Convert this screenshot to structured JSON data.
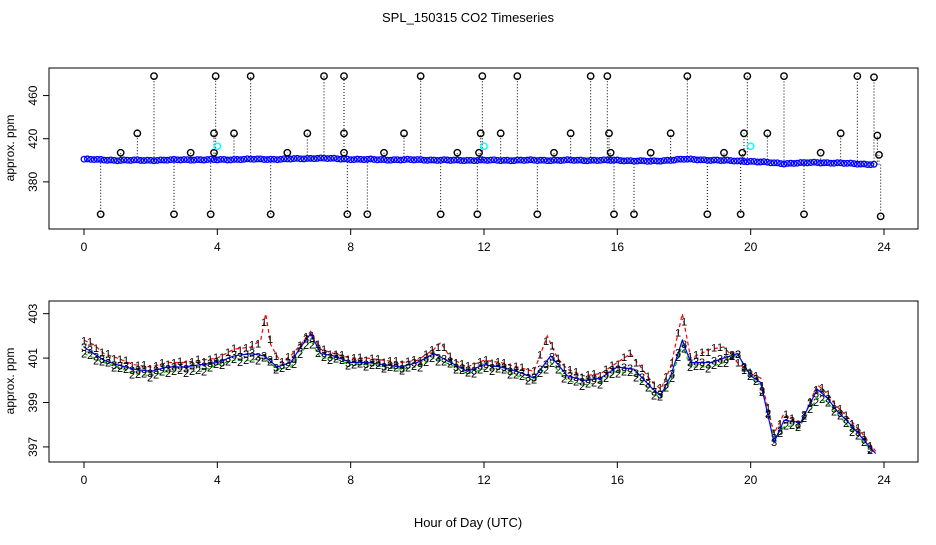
{
  "title": "SPL_150315  CO2 Timeseries",
  "xlabel": "Hour of Day (UTC)",
  "chart_data": [
    {
      "type": "scatter",
      "name": "top-panel",
      "ylabel": "approx. ppm",
      "xlim": [
        0,
        24
      ],
      "ylim": [
        340,
        480
      ],
      "x_ticks": [
        0,
        4,
        8,
        12,
        16,
        20,
        24
      ],
      "y_ticks": [
        380,
        420,
        460
      ],
      "colors": {
        "main": "#0000ff",
        "outlier": "#000000",
        "cyan": "#00ffff",
        "stem": "#000000"
      },
      "baseline": [
        [
          0,
          401
        ],
        [
          1,
          400
        ],
        [
          2,
          400
        ],
        [
          3,
          400.5
        ],
        [
          4,
          400.5
        ],
        [
          5,
          401
        ],
        [
          6,
          401
        ],
        [
          7,
          402
        ],
        [
          8,
          401
        ],
        [
          9,
          400.5
        ],
        [
          10,
          400.5
        ],
        [
          11,
          400
        ],
        [
          12,
          400
        ],
        [
          13,
          400
        ],
        [
          14,
          400
        ],
        [
          15,
          400
        ],
        [
          16,
          400
        ],
        [
          17,
          399
        ],
        [
          18,
          401
        ],
        [
          19,
          400
        ],
        [
          20,
          399
        ],
        [
          21,
          397
        ],
        [
          22,
          398
        ],
        [
          23,
          397
        ],
        [
          23.8,
          396
        ]
      ],
      "outliers": [
        {
          "x": 0.5,
          "y": 350
        },
        {
          "x": 1.1,
          "y": 407
        },
        {
          "x": 1.6,
          "y": 425
        },
        {
          "x": 2.1,
          "y": 478
        },
        {
          "x": 2.7,
          "y": 350
        },
        {
          "x": 3.2,
          "y": 407
        },
        {
          "x": 3.8,
          "y": 350
        },
        {
          "x": 3.9,
          "y": 425
        },
        {
          "x": 3.9,
          "y": 407
        },
        {
          "x": 3.95,
          "y": 478
        },
        {
          "x": 4.5,
          "y": 425
        },
        {
          "x": 5.0,
          "y": 478
        },
        {
          "x": 5.6,
          "y": 350
        },
        {
          "x": 6.1,
          "y": 407
        },
        {
          "x": 6.7,
          "y": 425
        },
        {
          "x": 7.2,
          "y": 478
        },
        {
          "x": 7.8,
          "y": 478
        },
        {
          "x": 7.8,
          "y": 425
        },
        {
          "x": 7.8,
          "y": 407
        },
        {
          "x": 7.9,
          "y": 350
        },
        {
          "x": 8.5,
          "y": 350
        },
        {
          "x": 9.0,
          "y": 407
        },
        {
          "x": 9.6,
          "y": 425
        },
        {
          "x": 10.1,
          "y": 478
        },
        {
          "x": 10.7,
          "y": 350
        },
        {
          "x": 11.2,
          "y": 407
        },
        {
          "x": 11.8,
          "y": 350
        },
        {
          "x": 11.85,
          "y": 407
        },
        {
          "x": 11.9,
          "y": 425
        },
        {
          "x": 11.95,
          "y": 478
        },
        {
          "x": 12.5,
          "y": 425
        },
        {
          "x": 13.0,
          "y": 478
        },
        {
          "x": 13.6,
          "y": 350
        },
        {
          "x": 14.1,
          "y": 407
        },
        {
          "x": 14.6,
          "y": 425
        },
        {
          "x": 15.2,
          "y": 478
        },
        {
          "x": 15.7,
          "y": 478
        },
        {
          "x": 15.75,
          "y": 425
        },
        {
          "x": 15.8,
          "y": 407
        },
        {
          "x": 15.9,
          "y": 350
        },
        {
          "x": 16.5,
          "y": 350
        },
        {
          "x": 17.0,
          "y": 407
        },
        {
          "x": 17.6,
          "y": 425
        },
        {
          "x": 18.1,
          "y": 478
        },
        {
          "x": 18.7,
          "y": 350
        },
        {
          "x": 19.2,
          "y": 407
        },
        {
          "x": 19.7,
          "y": 350
        },
        {
          "x": 19.75,
          "y": 407
        },
        {
          "x": 19.8,
          "y": 425
        },
        {
          "x": 19.9,
          "y": 478
        },
        {
          "x": 20.5,
          "y": 425
        },
        {
          "x": 21.0,
          "y": 478
        },
        {
          "x": 21.6,
          "y": 350
        },
        {
          "x": 22.1,
          "y": 407
        },
        {
          "x": 22.7,
          "y": 425
        },
        {
          "x": 23.2,
          "y": 478
        },
        {
          "x": 23.7,
          "y": 477
        },
        {
          "x": 23.8,
          "y": 423
        },
        {
          "x": 23.85,
          "y": 405
        },
        {
          "x": 23.9,
          "y": 348
        }
      ],
      "cyan_points": [
        {
          "x": 4.0,
          "y": 413
        },
        {
          "x": 12.0,
          "y": 413
        },
        {
          "x": 20.0,
          "y": 413
        }
      ]
    },
    {
      "type": "line",
      "name": "bottom-panel",
      "ylabel": "approx. ppm",
      "xlim": [
        0,
        24
      ],
      "ylim": [
        396.5,
        403.3
      ],
      "x_ticks": [
        0,
        4,
        8,
        12,
        16,
        20,
        24
      ],
      "y_ticks": [
        397,
        399,
        401,
        403
      ],
      "series": [
        {
          "name": "1",
          "color": "#ff0000",
          "marker": "1",
          "dashed": true,
          "points": [
            [
              0.0,
              401.8
            ],
            [
              0.3,
              401.6
            ],
            [
              0.6,
              401.2
            ],
            [
              1.0,
              401.0
            ],
            [
              1.5,
              400.7
            ],
            [
              2.0,
              400.6
            ],
            [
              2.5,
              400.8
            ],
            [
              3.0,
              400.8
            ],
            [
              3.5,
              400.9
            ],
            [
              4.0,
              401.0
            ],
            [
              4.5,
              401.4
            ],
            [
              5.0,
              401.5
            ],
            [
              5.3,
              401.8
            ],
            [
              5.45,
              403.0
            ],
            [
              5.6,
              401.6
            ],
            [
              5.9,
              400.8
            ],
            [
              6.2,
              401.1
            ],
            [
              6.5,
              401.6
            ],
            [
              6.8,
              402.2
            ],
            [
              7.1,
              401.4
            ],
            [
              7.5,
              401.2
            ],
            [
              8.0,
              401.0
            ],
            [
              8.5,
              401.0
            ],
            [
              9.0,
              400.9
            ],
            [
              9.5,
              400.8
            ],
            [
              10.0,
              400.9
            ],
            [
              10.5,
              401.4
            ],
            [
              10.7,
              401.7
            ],
            [
              11.0,
              401.0
            ],
            [
              11.5,
              400.6
            ],
            [
              12.0,
              400.9
            ],
            [
              12.5,
              400.8
            ],
            [
              13.0,
              400.6
            ],
            [
              13.5,
              400.4
            ],
            [
              13.9,
              402.0
            ],
            [
              14.2,
              401.0
            ],
            [
              14.5,
              400.5
            ],
            [
              15.0,
              400.2
            ],
            [
              15.5,
              400.3
            ],
            [
              16.0,
              400.8
            ],
            [
              16.4,
              401.2
            ],
            [
              16.6,
              400.8
            ],
            [
              17.0,
              400.0
            ],
            [
              17.3,
              399.6
            ],
            [
              17.6,
              400.6
            ],
            [
              17.95,
              403.0
            ],
            [
              18.2,
              401.0
            ],
            [
              18.5,
              401.2
            ],
            [
              18.8,
              401.4
            ],
            [
              19.2,
              401.5
            ],
            [
              19.6,
              400.8
            ],
            [
              20.0,
              400.3
            ],
            [
              20.3,
              400.1
            ],
            [
              20.7,
              397.6
            ],
            [
              21.0,
              398.5
            ],
            [
              21.5,
              398.0
            ],
            [
              22.0,
              399.8
            ],
            [
              22.3,
              399.4
            ],
            [
              22.6,
              398.8
            ],
            [
              23.0,
              398.2
            ],
            [
              23.4,
              397.5
            ],
            [
              23.75,
              396.8
            ]
          ]
        },
        {
          "name": "2",
          "color": "#00cc00",
          "marker": "2",
          "dashed": true,
          "points": [
            [
              0.0,
              401.2
            ],
            [
              0.3,
              401.0
            ],
            [
              0.6,
              400.8
            ],
            [
              1.0,
              400.6
            ],
            [
              1.5,
              400.3
            ],
            [
              2.0,
              400.2
            ],
            [
              2.5,
              400.4
            ],
            [
              3.0,
              400.4
            ],
            [
              3.5,
              400.4
            ],
            [
              4.0,
              400.7
            ],
            [
              4.5,
              400.9
            ],
            [
              5.0,
              400.9
            ],
            [
              5.4,
              401.0
            ],
            [
              5.8,
              400.5
            ],
            [
              6.2,
              400.6
            ],
            [
              6.5,
              401.2
            ],
            [
              6.8,
              401.8
            ],
            [
              7.1,
              401.0
            ],
            [
              7.5,
              401.0
            ],
            [
              8.0,
              400.7
            ],
            [
              8.5,
              400.7
            ],
            [
              9.0,
              400.6
            ],
            [
              9.5,
              400.5
            ],
            [
              10.0,
              400.6
            ],
            [
              10.5,
              401.0
            ],
            [
              11.0,
              400.7
            ],
            [
              11.5,
              400.3
            ],
            [
              12.0,
              400.5
            ],
            [
              12.5,
              400.5
            ],
            [
              13.0,
              400.2
            ],
            [
              13.5,
              400.0
            ],
            [
              14.0,
              400.8
            ],
            [
              14.5,
              400.0
            ],
            [
              15.0,
              399.8
            ],
            [
              15.5,
              399.9
            ],
            [
              16.0,
              400.4
            ],
            [
              16.5,
              400.3
            ],
            [
              17.0,
              399.5
            ],
            [
              17.3,
              399.2
            ],
            [
              17.6,
              400.0
            ],
            [
              17.95,
              401.6
            ],
            [
              18.2,
              400.6
            ],
            [
              18.5,
              400.6
            ],
            [
              18.8,
              400.6
            ],
            [
              19.2,
              400.8
            ],
            [
              19.6,
              401.2
            ],
            [
              20.0,
              400.1
            ],
            [
              20.3,
              399.8
            ],
            [
              20.7,
              397.4
            ],
            [
              21.0,
              397.9
            ],
            [
              21.5,
              398.0
            ],
            [
              22.0,
              399.2
            ],
            [
              22.3,
              399.0
            ],
            [
              22.6,
              398.5
            ],
            [
              23.0,
              397.8
            ],
            [
              23.4,
              397.2
            ],
            [
              23.75,
              396.7
            ]
          ]
        },
        {
          "name": "3",
          "color": "#0000ff",
          "marker": "3",
          "dashed": false,
          "points": [
            [
              0.0,
              401.5
            ],
            [
              0.3,
              401.2
            ],
            [
              0.6,
              400.9
            ],
            [
              1.0,
              400.7
            ],
            [
              1.5,
              400.5
            ],
            [
              2.0,
              400.4
            ],
            [
              2.5,
              400.6
            ],
            [
              3.0,
              400.6
            ],
            [
              3.5,
              400.7
            ],
            [
              4.0,
              400.8
            ],
            [
              4.5,
              401.1
            ],
            [
              5.0,
              401.2
            ],
            [
              5.4,
              401.1
            ],
            [
              5.8,
              400.6
            ],
            [
              6.2,
              400.8
            ],
            [
              6.5,
              401.5
            ],
            [
              6.8,
              402.1
            ],
            [
              7.1,
              401.2
            ],
            [
              7.5,
              401.1
            ],
            [
              8.0,
              400.8
            ],
            [
              8.5,
              400.8
            ],
            [
              9.0,
              400.7
            ],
            [
              9.5,
              400.6
            ],
            [
              10.0,
              400.8
            ],
            [
              10.5,
              401.2
            ],
            [
              11.0,
              400.8
            ],
            [
              11.5,
              400.4
            ],
            [
              12.0,
              400.7
            ],
            [
              12.5,
              400.6
            ],
            [
              13.0,
              400.4
            ],
            [
              13.5,
              400.1
            ],
            [
              14.0,
              401.1
            ],
            [
              14.5,
              400.2
            ],
            [
              15.0,
              400.0
            ],
            [
              15.5,
              400.1
            ],
            [
              16.0,
              400.6
            ],
            [
              16.5,
              400.5
            ],
            [
              17.0,
              399.7
            ],
            [
              17.3,
              399.3
            ],
            [
              17.6,
              400.2
            ],
            [
              17.95,
              401.8
            ],
            [
              18.2,
              400.8
            ],
            [
              18.5,
              400.8
            ],
            [
              18.8,
              400.8
            ],
            [
              19.2,
              401.0
            ],
            [
              19.6,
              401.2
            ],
            [
              20.0,
              400.2
            ],
            [
              20.3,
              399.9
            ],
            [
              20.7,
              397.2
            ],
            [
              21.0,
              398.2
            ],
            [
              21.5,
              398.1
            ],
            [
              22.0,
              399.6
            ],
            [
              22.3,
              399.2
            ],
            [
              22.6,
              398.6
            ],
            [
              23.0,
              398.0
            ],
            [
              23.4,
              397.3
            ],
            [
              23.75,
              396.7
            ]
          ]
        }
      ]
    }
  ]
}
